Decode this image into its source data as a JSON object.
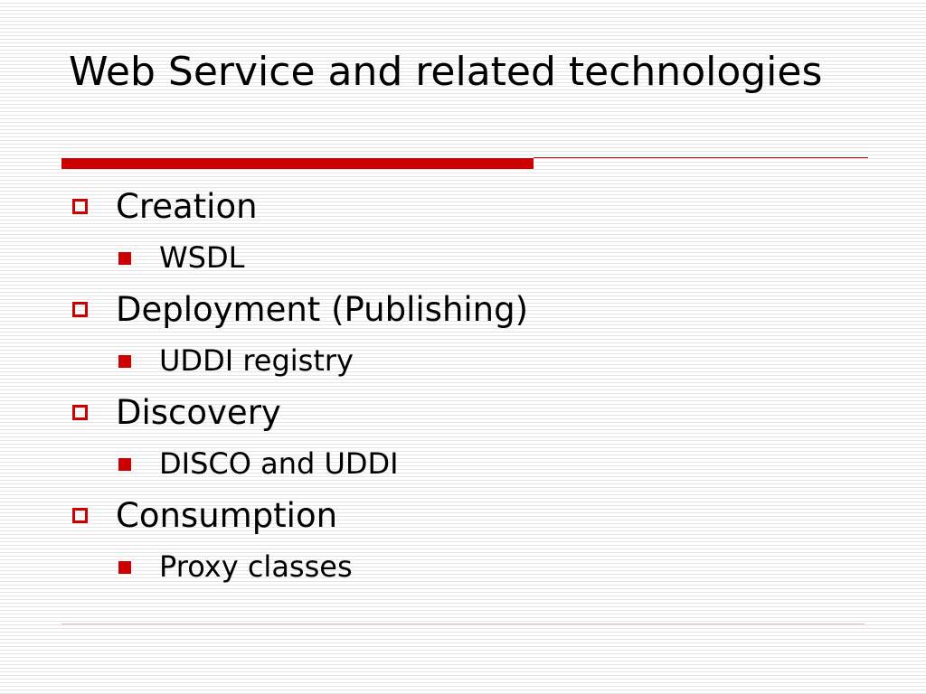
{
  "slide": {
    "title": "Web Service and related technologies",
    "accent_color": "#cc0000",
    "bullets": [
      {
        "text": "Creation",
        "icon": "hollow-square-bullet-icon",
        "sub": [
          {
            "text": "WSDL",
            "icon": "filled-square-bullet-icon"
          }
        ]
      },
      {
        "text": "Deployment (Publishing)",
        "icon": "hollow-square-bullet-icon",
        "sub": [
          {
            "text": "UDDI registry",
            "icon": "filled-square-bullet-icon"
          }
        ]
      },
      {
        "text": "Discovery",
        "icon": "hollow-square-bullet-icon",
        "sub": [
          {
            "text": "DISCO and UDDI",
            "icon": "filled-square-bullet-icon"
          }
        ]
      },
      {
        "text": "Consumption",
        "icon": "hollow-square-bullet-icon",
        "sub": [
          {
            "text": "Proxy classes",
            "icon": "filled-square-bullet-icon"
          }
        ]
      }
    ]
  }
}
